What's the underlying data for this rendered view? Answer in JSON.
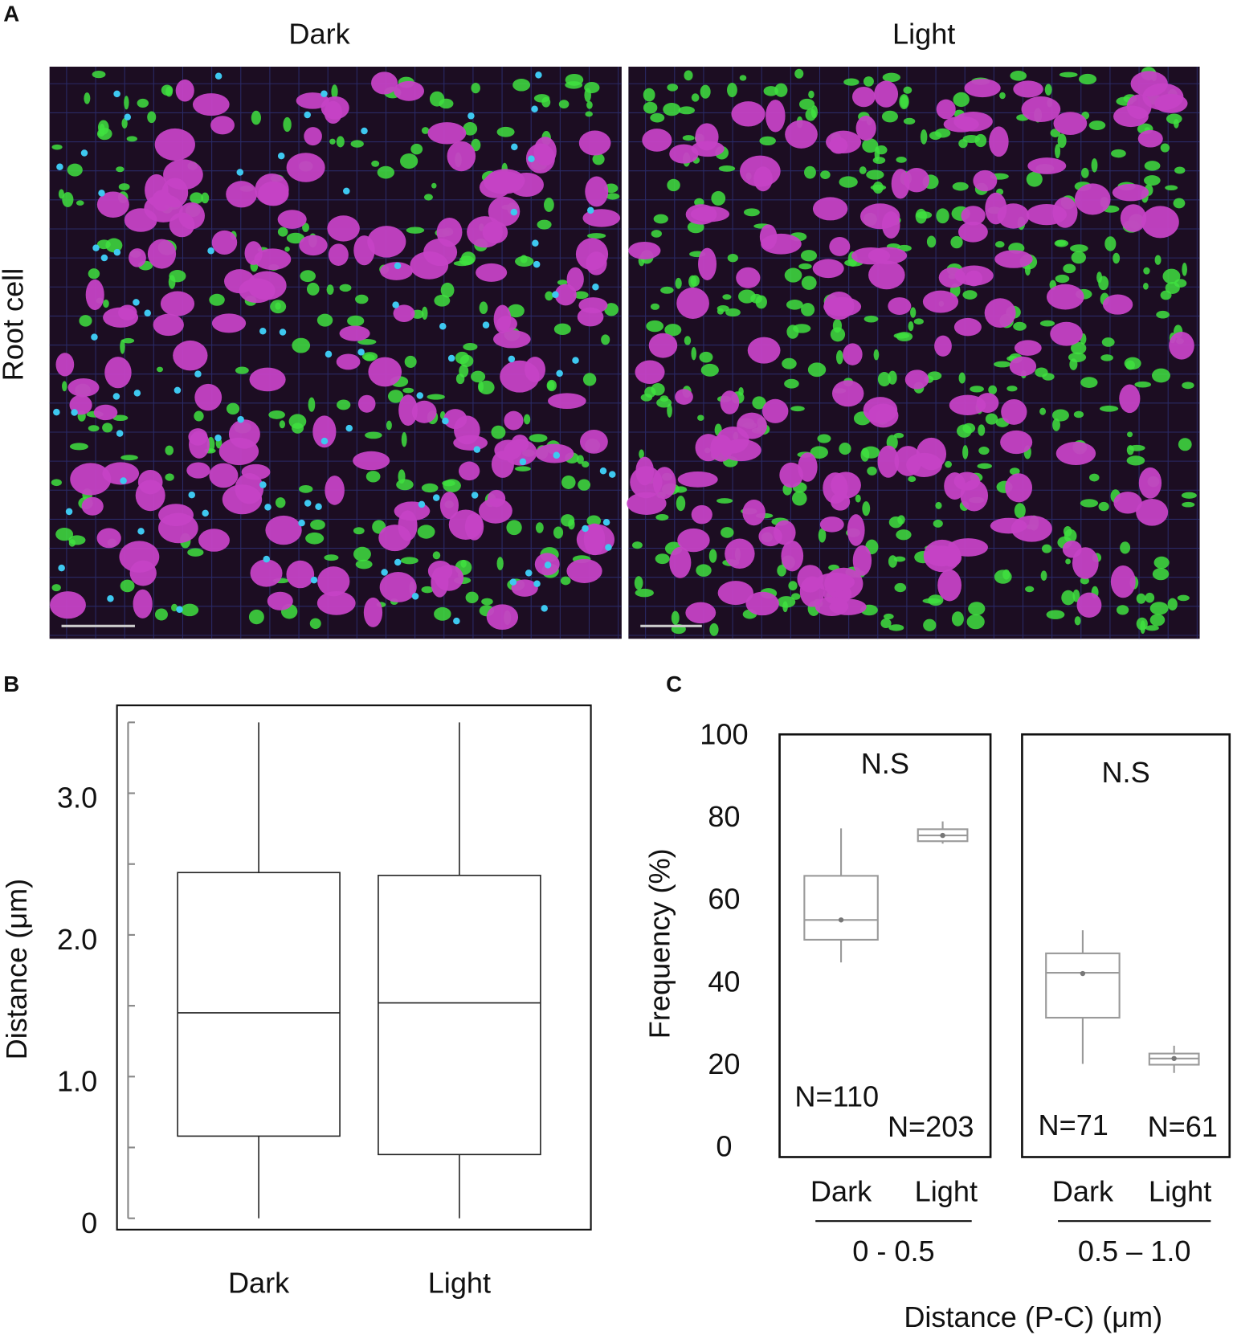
{
  "panel_a": {
    "label": "A",
    "columns": [
      "Dark",
      "Light"
    ],
    "row_label": "Root cell"
  },
  "chart_data": [
    {
      "type": "box",
      "label": "B",
      "y_label": "Distance (μm)",
      "categories": [
        "Dark",
        "Light"
      ],
      "ylim": [
        -0.08,
        3.62
      ],
      "yticks": [
        0,
        {
          "value": 1,
          "label": "1.0"
        },
        {
          "value": 2,
          "label": "2.0"
        },
        {
          "value": 3,
          "label": "3.0"
        }
      ],
      "minor_yticks": [
        0.5,
        1.5,
        2.5,
        3.5
      ],
      "boxes": [
        {
          "min": 0,
          "q1": 0.58,
          "median": 1.45,
          "q3": 2.44,
          "max": 3.5
        },
        {
          "min": 0,
          "q1": 0.45,
          "median": 1.52,
          "q3": 2.42,
          "max": 3.5
        }
      ],
      "color": "#222222"
    },
    {
      "type": "grouped-box",
      "label": "C",
      "y_label": "Frequency (%)",
      "x_label": "Distance (P-C)  (μm)",
      "ylim": [
        -2,
        100.5
      ],
      "yticks": [
        0,
        20,
        40,
        60,
        80,
        100
      ],
      "color": "#9a9a9a",
      "groups": [
        {
          "label": "0 - 0.5",
          "annotation": "N.S",
          "categories": [
            "Dark",
            "Light"
          ],
          "n_labels": [
            "N=110",
            "N=203"
          ],
          "boxes": [
            {
              "min": 45.2,
              "q1": 50.7,
              "median": 55.5,
              "q3": 66.2,
              "max": 77.7,
              "mean": 55.5
            },
            {
              "min": 74,
              "q1": 74.6,
              "median": 76,
              "q3": 77.5,
              "max": 79.4,
              "mean": 76
            }
          ]
        },
        {
          "label": "0.5 – 1.0",
          "annotation": "N.S",
          "categories": [
            "Dark",
            "Light"
          ],
          "n_labels": [
            "N=71",
            "N=61"
          ],
          "boxes": [
            {
              "min": 20.6,
              "q1": 31.8,
              "median": 42.7,
              "q3": 47.4,
              "max": 53,
              "mean": 42.5
            },
            {
              "min": 18.4,
              "q1": 20.4,
              "median": 21.9,
              "q3": 23.1,
              "max": 25,
              "mean": 21.9
            }
          ]
        }
      ]
    }
  ]
}
